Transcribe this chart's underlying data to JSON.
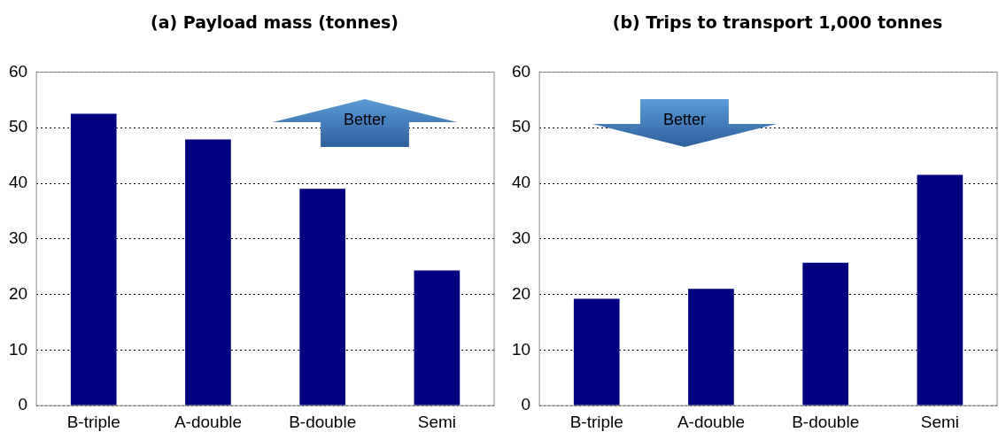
{
  "chart_data": [
    {
      "type": "bar",
      "title": "(a) Payload mass (tonnes)",
      "categories": [
        "B-triple",
        "A-double",
        "B-double",
        "Semi"
      ],
      "values": [
        52.5,
        47.9,
        39,
        24.3
      ],
      "color": "#000080",
      "ylim": [
        0,
        60
      ],
      "yticks": [
        0,
        10,
        20,
        30,
        40,
        50,
        60
      ],
      "grid": "y",
      "legend": false,
      "annotations": [
        "Better"
      ]
    },
    {
      "type": "bar",
      "title": "(b) Trips to transport 1,000 tonnes",
      "categories": [
        "B-triple",
        "A-double",
        "B-double",
        "Semi"
      ],
      "values": [
        19.2,
        21,
        25.7,
        41.5
      ],
      "color": "#000080",
      "ylim": [
        0,
        60
      ],
      "yticks": [
        0,
        10,
        20,
        30,
        40,
        50,
        60
      ],
      "grid": "y",
      "legend": false,
      "annotations": [
        "Better"
      ]
    }
  ]
}
